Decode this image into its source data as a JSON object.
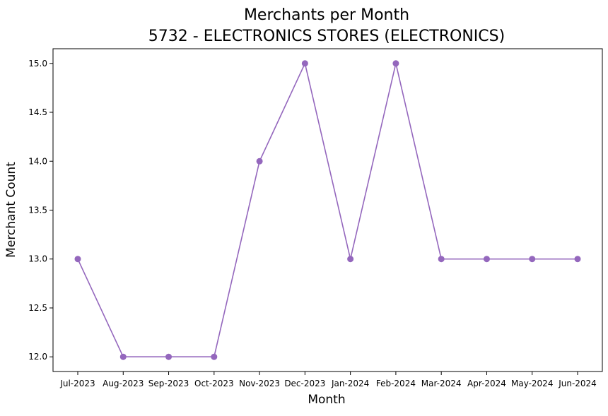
{
  "chart_data": {
    "type": "line",
    "title_line1": "Merchants per Month",
    "title_line2": "5732 - ELECTRONICS STORES (ELECTRONICS)",
    "xlabel": "Month",
    "ylabel": "Merchant Count",
    "categories": [
      "Jul-2023",
      "Aug-2023",
      "Sep-2023",
      "Oct-2023",
      "Nov-2023",
      "Dec-2023",
      "Jan-2024",
      "Feb-2024",
      "Mar-2024",
      "Apr-2024",
      "May-2024",
      "Jun-2024"
    ],
    "values": [
      13,
      12,
      12,
      12,
      14,
      15,
      13,
      15,
      13,
      13,
      13,
      13
    ],
    "ylim": [
      11.85,
      15.15
    ],
    "yticks": [
      "12.0",
      "12.5",
      "13.0",
      "13.5",
      "14.0",
      "14.5",
      "15.0"
    ],
    "grid": false,
    "legend": "none",
    "color": "#9467bd"
  }
}
